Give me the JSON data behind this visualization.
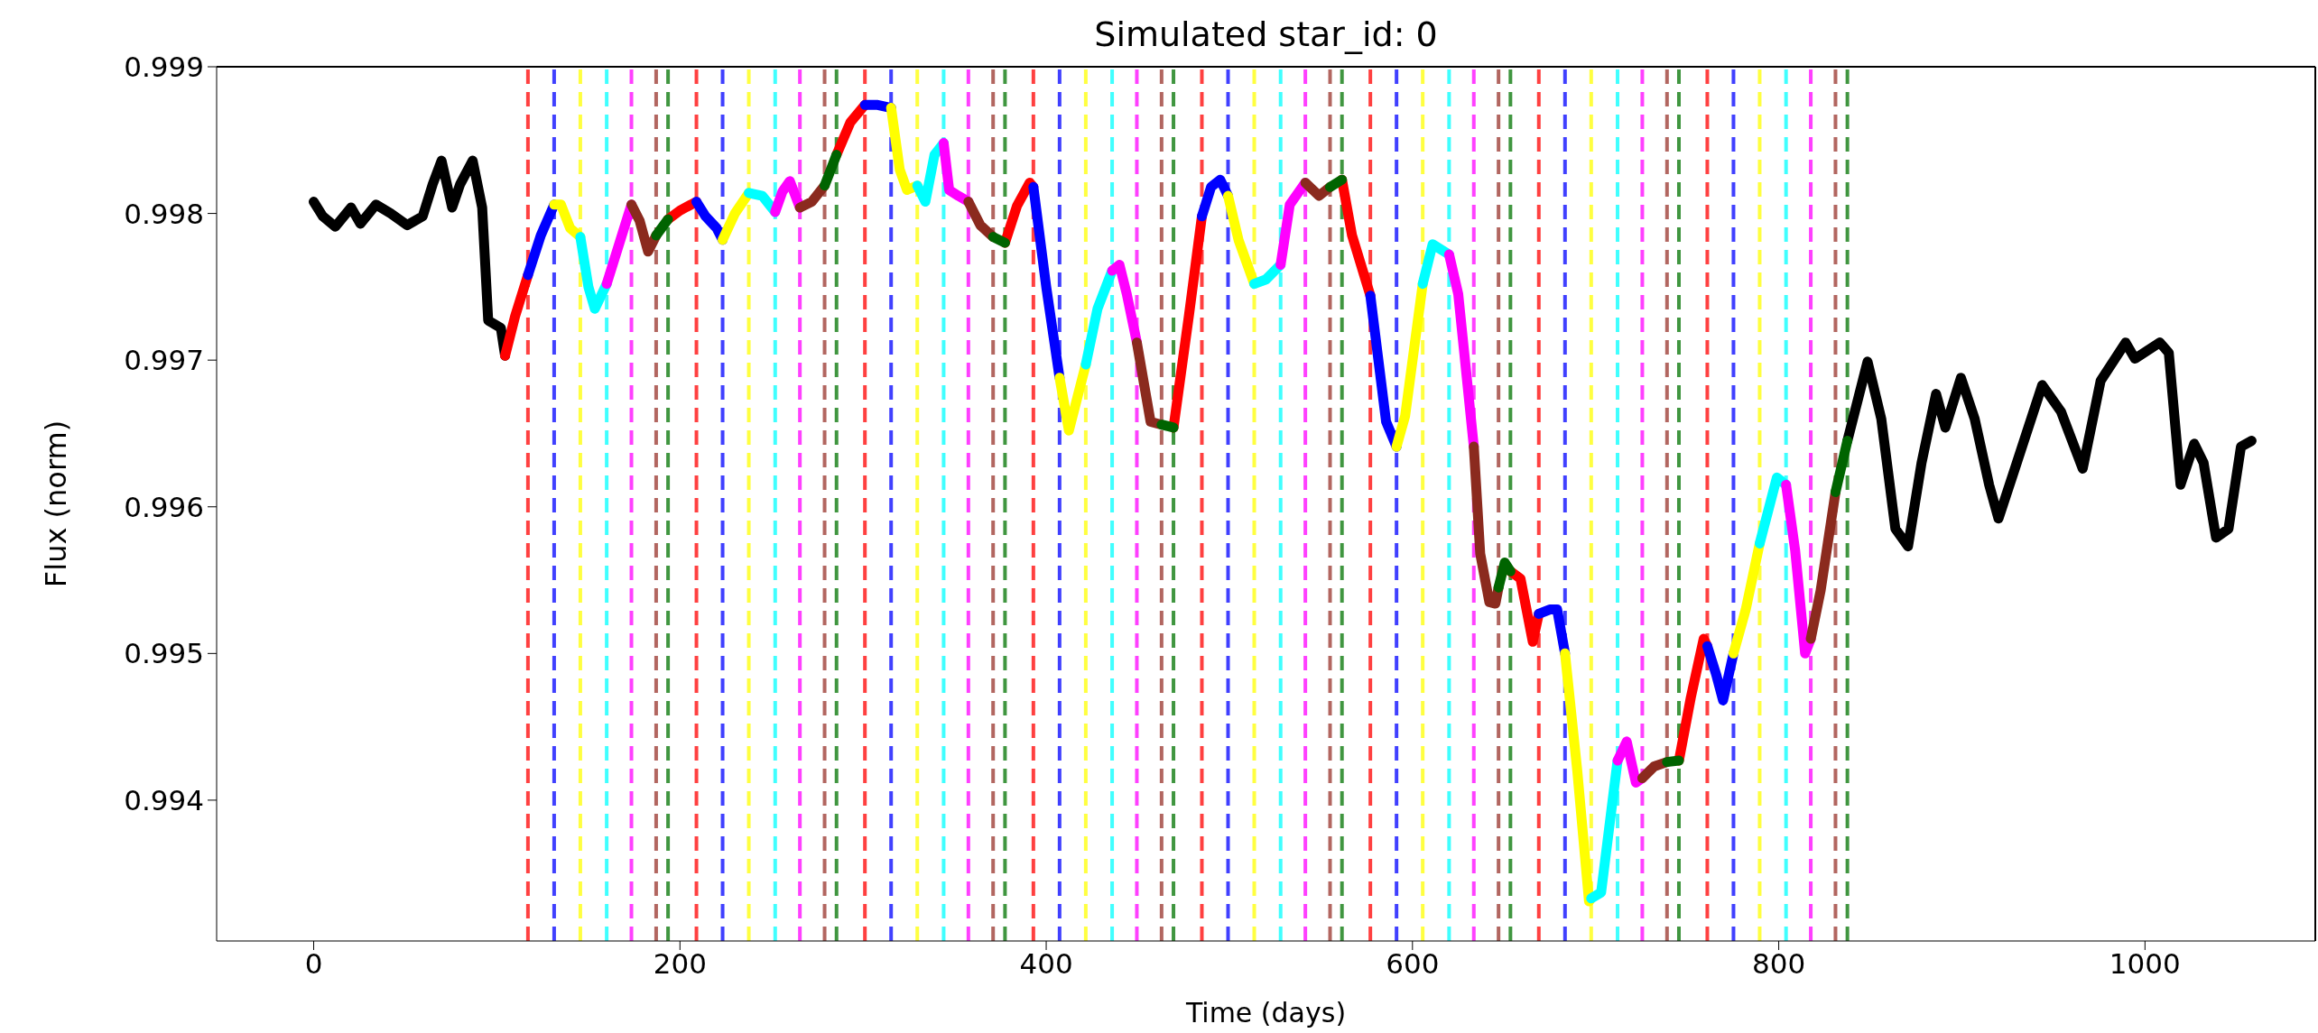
{
  "chart_data": {
    "type": "line",
    "title": "Simulated star_id: 0",
    "xlabel": "Time (days)",
    "ylabel": "Flux (norm)",
    "xlim": [
      -53,
      1093
    ],
    "xticks": [
      0,
      200,
      400,
      600,
      800,
      1000
    ],
    "ylim": [
      0.99304,
      0.999
    ],
    "yticks": [
      0.994,
      0.995,
      0.996,
      0.997,
      0.998,
      0.999
    ],
    "series": [
      {
        "color": "#000000",
        "x": [
          0,
          5,
          11.8,
          20.4,
          25.5,
          34,
          42,
          51,
          59.5,
          65,
          69.8,
          75.6,
          80,
          86.8,
          92,
          95.3,
          102.2,
          104.5,
          470,
          837.5,
          848.5,
          856,
          863.7,
          870.6,
          878,
          885.9,
          891,
          899.5,
          907,
          914.9,
          920,
          930,
          943.9,
          954.1,
          966,
          975.8,
          989.4,
          994.5,
          1008.1,
          1013,
          1019.4,
          1026.9,
          1032,
          1038.8,
          1045.6,
          1052.4,
          1058.2
        ],
        "values": [
          0.99808,
          0.99798,
          0.99791,
          0.99804,
          0.99793,
          0.99806,
          0.998,
          0.99792,
          0.99798,
          0.9982,
          0.99836,
          0.99804,
          0.9982,
          0.99836,
          0.99804,
          0.99727,
          0.99722,
          0.99703,
          null,
          0.99645,
          0.99699,
          0.9966,
          0.99585,
          0.99573,
          0.9963,
          0.99677,
          0.99654,
          0.99688,
          0.9966,
          0.99615,
          0.99592,
          0.9963,
          0.99683,
          0.99665,
          0.99626,
          0.99686,
          0.99712,
          0.99701,
          0.99712,
          0.99705,
          0.99615,
          0.99643,
          0.9963,
          0.99579,
          0.99585,
          0.99641,
          0.99645
        ]
      },
      {
        "color": "#ff0000",
        "x": [
          104.5,
          110,
          117,
          118,
          193.5,
          200,
          209,
          210,
          285.5,
          293,
          301,
          302,
          377.5,
          384,
          391,
          393,
          394,
          469.5,
          478,
          485,
          486,
          561.5,
          567,
          577,
          578,
          653.5,
          659,
          665.7,
          669,
          670,
          745.5,
          752,
          759,
          761
        ],
        "values": [
          0.99703,
          0.9973,
          0.99758,
          null,
          0.99796,
          0.99802,
          0.99808,
          null,
          0.9984,
          0.99862,
          0.99874,
          null,
          0.9978,
          0.99805,
          0.99821,
          0.99818,
          null,
          0.99654,
          0.99731,
          0.99798,
          null,
          0.99823,
          0.99785,
          0.99744,
          null,
          0.99556,
          0.99551,
          0.99508,
          0.99527,
          null,
          0.99427,
          0.9947,
          0.9951,
          0.99505
        ]
      },
      {
        "color": "#0000ff",
        "x": [
          117,
          124,
          131.3,
          132,
          209,
          214,
          220,
          223.3,
          224,
          301,
          308,
          315.3,
          316,
          393,
          400,
          407.3,
          408,
          485,
          490,
          495,
          499.3,
          500,
          577,
          585.6,
          591.3,
          592,
          669,
          675,
          679,
          683.3,
          684,
          761,
          766,
          769.6,
          775.3
        ],
        "values": [
          0.99758,
          0.99785,
          0.99806,
          null,
          0.99808,
          0.99798,
          0.9979,
          0.99782,
          null,
          0.99874,
          0.99874,
          0.99872,
          null,
          0.99818,
          0.9975,
          0.99688,
          null,
          0.99798,
          0.99818,
          0.99823,
          0.99812,
          null,
          0.99744,
          0.99658,
          0.99641,
          null,
          0.99527,
          0.9953,
          0.9953,
          0.995,
          null,
          0.99505,
          0.99485,
          0.99468,
          0.995
        ]
      },
      {
        "color": "#ffff00",
        "x": [
          131.3,
          135,
          140,
          145.6,
          146,
          223.3,
          230,
          237.6,
          238,
          315.3,
          320,
          324,
          329.6,
          330,
          407.3,
          412.4,
          421.6,
          422,
          499.3,
          505,
          513.6,
          514,
          591.3,
          596,
          605.6,
          606,
          683.3,
          690,
          696.4,
          697.6,
          698,
          775.3,
          782,
          789.6
        ],
        "values": [
          0.99806,
          0.99806,
          0.9979,
          0.99784,
          null,
          0.99782,
          0.998,
          0.99814,
          null,
          0.99872,
          0.9983,
          0.99816,
          0.99819,
          null,
          0.99688,
          0.99652,
          0.99697,
          null,
          0.99812,
          0.99782,
          0.99752,
          null,
          0.99641,
          0.99662,
          0.99752,
          null,
          0.995,
          0.9942,
          0.99331,
          0.99333,
          null,
          0.995,
          0.9953,
          0.99575
        ]
      },
      {
        "color": "#00ffff",
        "x": [
          145.6,
          150,
          153.5,
          160,
          161,
          237.6,
          245,
          252,
          253,
          329.6,
          334,
          339,
          344,
          345,
          421.6,
          428,
          436,
          437,
          513.6,
          520,
          528,
          529,
          605.6,
          611,
          620,
          621,
          697.6,
          703,
          712,
          713,
          789.6,
          799,
          804
        ],
        "values": [
          0.99784,
          0.9975,
          0.99735,
          0.99752,
          null,
          0.99814,
          0.99812,
          0.99801,
          null,
          0.99819,
          0.99808,
          0.9984,
          0.99848,
          null,
          0.99697,
          0.99735,
          0.99761,
          null,
          0.99752,
          0.99755,
          0.99765,
          null,
          0.99752,
          0.99779,
          0.99772,
          null,
          0.99333,
          0.99337,
          0.99427,
          null,
          0.99575,
          0.9962,
          0.99615
        ]
      },
      {
        "color": "#ff00ff",
        "x": [
          160,
          167,
          173.5,
          174,
          252,
          256,
          260,
          265.5,
          266,
          344,
          347,
          352,
          357.5,
          358,
          436,
          440,
          444,
          449.5,
          450,
          528,
          533,
          541.5,
          542,
          620,
          625,
          633.5,
          634,
          712,
          717,
          722,
          725.5,
          726,
          804,
          809,
          814.4,
          817.5
        ],
        "values": [
          0.99752,
          0.9978,
          0.99806,
          null,
          0.99801,
          0.99815,
          0.99822,
          0.99804,
          null,
          0.99848,
          0.99816,
          0.99812,
          0.99808,
          null,
          0.99761,
          0.99765,
          0.99745,
          0.99712,
          null,
          0.99765,
          0.99806,
          0.99821,
          null,
          0.99772,
          0.99745,
          0.99641,
          null,
          0.99427,
          0.9944,
          0.99412,
          0.99415,
          null,
          0.99615,
          0.9957,
          0.995,
          0.9951
        ]
      },
      {
        "color": "#8b2a1e",
        "x": [
          173.5,
          178,
          182.6,
          187,
          188,
          265.5,
          272,
          279,
          280,
          357.5,
          364,
          371,
          372,
          449.5,
          457,
          463,
          464,
          541.5,
          549,
          555,
          556,
          633.5,
          637,
          642,
          645.3,
          647,
          648,
          725.5,
          732,
          739,
          740,
          817.5,
          822.9,
          831
        ],
        "values": [
          0.99806,
          0.99795,
          0.99774,
          0.99785,
          null,
          0.99804,
          0.99808,
          0.99819,
          null,
          0.99808,
          0.99792,
          0.99784,
          null,
          0.99712,
          0.99658,
          0.99656,
          null,
          0.99821,
          0.99812,
          0.99818,
          null,
          0.99641,
          0.99568,
          0.99535,
          0.99534,
          0.99545,
          null,
          0.99415,
          0.99423,
          0.99426,
          null,
          0.9951,
          0.99543,
          0.9961
        ]
      },
      {
        "color": "#006400",
        "x": [
          187,
          193.5,
          194,
          279,
          285.5,
          286,
          371,
          377.5,
          378,
          463,
          469.5,
          470,
          555,
          561.5,
          562,
          647,
          650.4,
          653.5,
          654,
          739,
          745.5,
          746,
          831,
          837.5
        ],
        "values": [
          0.99785,
          0.99796,
          null,
          0.99819,
          0.9984,
          null,
          0.99784,
          0.9978,
          null,
          0.99656,
          0.99654,
          null,
          0.99818,
          0.99823,
          null,
          0.99545,
          0.99562,
          0.99556,
          null,
          0.99426,
          0.99427,
          null,
          0.9961,
          0.99645
        ]
      }
    ],
    "ref_lines": [
      {
        "axis": "x",
        "value": 117,
        "color": "#ff4040",
        "line_style": "dashed"
      },
      {
        "axis": "x",
        "value": 131.3,
        "color": "#4040ff",
        "line_style": "dashed"
      },
      {
        "axis": "x",
        "value": 145.6,
        "color": "#ffff40",
        "line_style": "dashed"
      },
      {
        "axis": "x",
        "value": 160,
        "color": "#40ffff",
        "line_style": "dashed"
      },
      {
        "axis": "x",
        "value": 173.5,
        "color": "#ff40ff",
        "line_style": "dashed"
      },
      {
        "axis": "x",
        "value": 187,
        "color": "#b26660",
        "line_style": "dashed"
      },
      {
        "axis": "x",
        "value": 193.5,
        "color": "#409640",
        "line_style": "dashed"
      },
      {
        "axis": "x",
        "value": 209,
        "color": "#ff4040",
        "line_style": "dashed"
      },
      {
        "axis": "x",
        "value": 223.3,
        "color": "#4040ff",
        "line_style": "dashed"
      },
      {
        "axis": "x",
        "value": 237.6,
        "color": "#ffff40",
        "line_style": "dashed"
      },
      {
        "axis": "x",
        "value": 252,
        "color": "#40ffff",
        "line_style": "dashed"
      },
      {
        "axis": "x",
        "value": 265.5,
        "color": "#ff40ff",
        "line_style": "dashed"
      },
      {
        "axis": "x",
        "value": 279,
        "color": "#b26660",
        "line_style": "dashed"
      },
      {
        "axis": "x",
        "value": 285.5,
        "color": "#409640",
        "line_style": "dashed"
      },
      {
        "axis": "x",
        "value": 301,
        "color": "#ff4040",
        "line_style": "dashed"
      },
      {
        "axis": "x",
        "value": 315.3,
        "color": "#4040ff",
        "line_style": "dashed"
      },
      {
        "axis": "x",
        "value": 329.6,
        "color": "#ffff40",
        "line_style": "dashed"
      },
      {
        "axis": "x",
        "value": 344,
        "color": "#40ffff",
        "line_style": "dashed"
      },
      {
        "axis": "x",
        "value": 357.5,
        "color": "#ff40ff",
        "line_style": "dashed"
      },
      {
        "axis": "x",
        "value": 371,
        "color": "#b26660",
        "line_style": "dashed"
      },
      {
        "axis": "x",
        "value": 377.5,
        "color": "#409640",
        "line_style": "dashed"
      },
      {
        "axis": "x",
        "value": 393,
        "color": "#ff4040",
        "line_style": "dashed"
      },
      {
        "axis": "x",
        "value": 407.3,
        "color": "#4040ff",
        "line_style": "dashed"
      },
      {
        "axis": "x",
        "value": 421.6,
        "color": "#ffff40",
        "line_style": "dashed"
      },
      {
        "axis": "x",
        "value": 436,
        "color": "#40ffff",
        "line_style": "dashed"
      },
      {
        "axis": "x",
        "value": 449.5,
        "color": "#ff40ff",
        "line_style": "dashed"
      },
      {
        "axis": "x",
        "value": 463,
        "color": "#b26660",
        "line_style": "dashed"
      },
      {
        "axis": "x",
        "value": 469.5,
        "color": "#409640",
        "line_style": "dashed"
      },
      {
        "axis": "x",
        "value": 485,
        "color": "#ff4040",
        "line_style": "dashed"
      },
      {
        "axis": "x",
        "value": 499.3,
        "color": "#4040ff",
        "line_style": "dashed"
      },
      {
        "axis": "x",
        "value": 513.6,
        "color": "#ffff40",
        "line_style": "dashed"
      },
      {
        "axis": "x",
        "value": 528,
        "color": "#40ffff",
        "line_style": "dashed"
      },
      {
        "axis": "x",
        "value": 541.5,
        "color": "#ff40ff",
        "line_style": "dashed"
      },
      {
        "axis": "x",
        "value": 555,
        "color": "#b26660",
        "line_style": "dashed"
      },
      {
        "axis": "x",
        "value": 561.5,
        "color": "#409640",
        "line_style": "dashed"
      },
      {
        "axis": "x",
        "value": 577,
        "color": "#ff4040",
        "line_style": "dashed"
      },
      {
        "axis": "x",
        "value": 591.3,
        "color": "#4040ff",
        "line_style": "dashed"
      },
      {
        "axis": "x",
        "value": 605.6,
        "color": "#ffff40",
        "line_style": "dashed"
      },
      {
        "axis": "x",
        "value": 620,
        "color": "#40ffff",
        "line_style": "dashed"
      },
      {
        "axis": "x",
        "value": 633.5,
        "color": "#ff40ff",
        "line_style": "dashed"
      },
      {
        "axis": "x",
        "value": 647,
        "color": "#b26660",
        "line_style": "dashed"
      },
      {
        "axis": "x",
        "value": 653.5,
        "color": "#409640",
        "line_style": "dashed"
      },
      {
        "axis": "x",
        "value": 669,
        "color": "#ff4040",
        "line_style": "dashed"
      },
      {
        "axis": "x",
        "value": 683.3,
        "color": "#4040ff",
        "line_style": "dashed"
      },
      {
        "axis": "x",
        "value": 697.6,
        "color": "#ffff40",
        "line_style": "dashed"
      },
      {
        "axis": "x",
        "value": 712,
        "color": "#40ffff",
        "line_style": "dashed"
      },
      {
        "axis": "x",
        "value": 725.5,
        "color": "#ff40ff",
        "line_style": "dashed"
      },
      {
        "axis": "x",
        "value": 739,
        "color": "#b26660",
        "line_style": "dashed"
      },
      {
        "axis": "x",
        "value": 745.5,
        "color": "#409640",
        "line_style": "dashed"
      },
      {
        "axis": "x",
        "value": 761,
        "color": "#ff4040",
        "line_style": "dashed"
      },
      {
        "axis": "x",
        "value": 775.3,
        "color": "#4040ff",
        "line_style": "dashed"
      },
      {
        "axis": "x",
        "value": 789.6,
        "color": "#ffff40",
        "line_style": "dashed"
      },
      {
        "axis": "x",
        "value": 804,
        "color": "#40ffff",
        "line_style": "dashed"
      },
      {
        "axis": "x",
        "value": 817.5,
        "color": "#ff40ff",
        "line_style": "dashed"
      },
      {
        "axis": "x",
        "value": 831,
        "color": "#b26660",
        "line_style": "dashed"
      },
      {
        "axis": "x",
        "value": 837.5,
        "color": "#409640",
        "line_style": "dashed"
      }
    ]
  }
}
